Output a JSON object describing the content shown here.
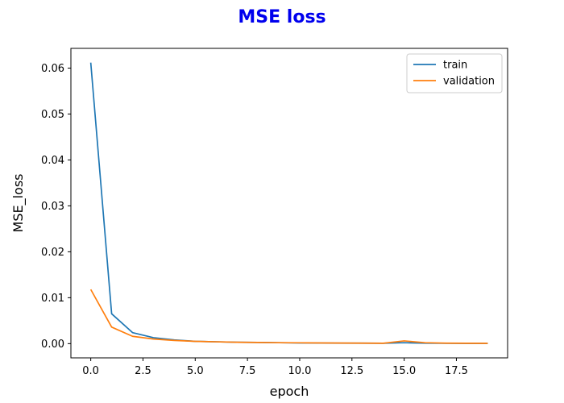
{
  "chart_data": {
    "type": "line",
    "title": "MSE loss",
    "title_color": "#0000ee",
    "xlabel": "epoch",
    "ylabel": "MSE_loss",
    "xlim": [
      -0.95,
      19.95
    ],
    "ylim": [
      -0.0031,
      0.0643
    ],
    "xticks": [
      0.0,
      2.5,
      5.0,
      7.5,
      10.0,
      12.5,
      15.0,
      17.5
    ],
    "xtick_labels": [
      "0.0",
      "2.5",
      "5.0",
      "7.5",
      "10.0",
      "12.5",
      "15.0",
      "17.5"
    ],
    "yticks": [
      0.0,
      0.01,
      0.02,
      0.03,
      0.04,
      0.05,
      0.06
    ],
    "ytick_labels": [
      "0.00",
      "0.01",
      "0.02",
      "0.03",
      "0.04",
      "0.05",
      "0.06"
    ],
    "grid": false,
    "legend_position": "top-right",
    "x": [
      0,
      1,
      2,
      3,
      4,
      5,
      6,
      7,
      8,
      9,
      10,
      11,
      12,
      13,
      14,
      15,
      16,
      17,
      18,
      19
    ],
    "series": [
      {
        "name": "train",
        "color": "#1f77b4",
        "values": [
          0.0612,
          0.0065,
          0.0024,
          0.0013,
          0.0008,
          0.0005,
          0.0004,
          0.0003,
          0.00025,
          0.0002,
          0.00015,
          0.00012,
          0.0001,
          0.0001,
          8e-05,
          0.0002,
          0.0001,
          7e-05,
          6e-05,
          5e-05
        ]
      },
      {
        "name": "validation",
        "color": "#ff7f0e",
        "values": [
          0.0118,
          0.0036,
          0.0016,
          0.001,
          0.0007,
          0.0005,
          0.0004,
          0.0003,
          0.00025,
          0.0002,
          0.00018,
          0.00015,
          0.00012,
          0.0001,
          8e-05,
          0.0006,
          0.0002,
          0.0001,
          8e-05,
          6e-05
        ]
      }
    ]
  }
}
